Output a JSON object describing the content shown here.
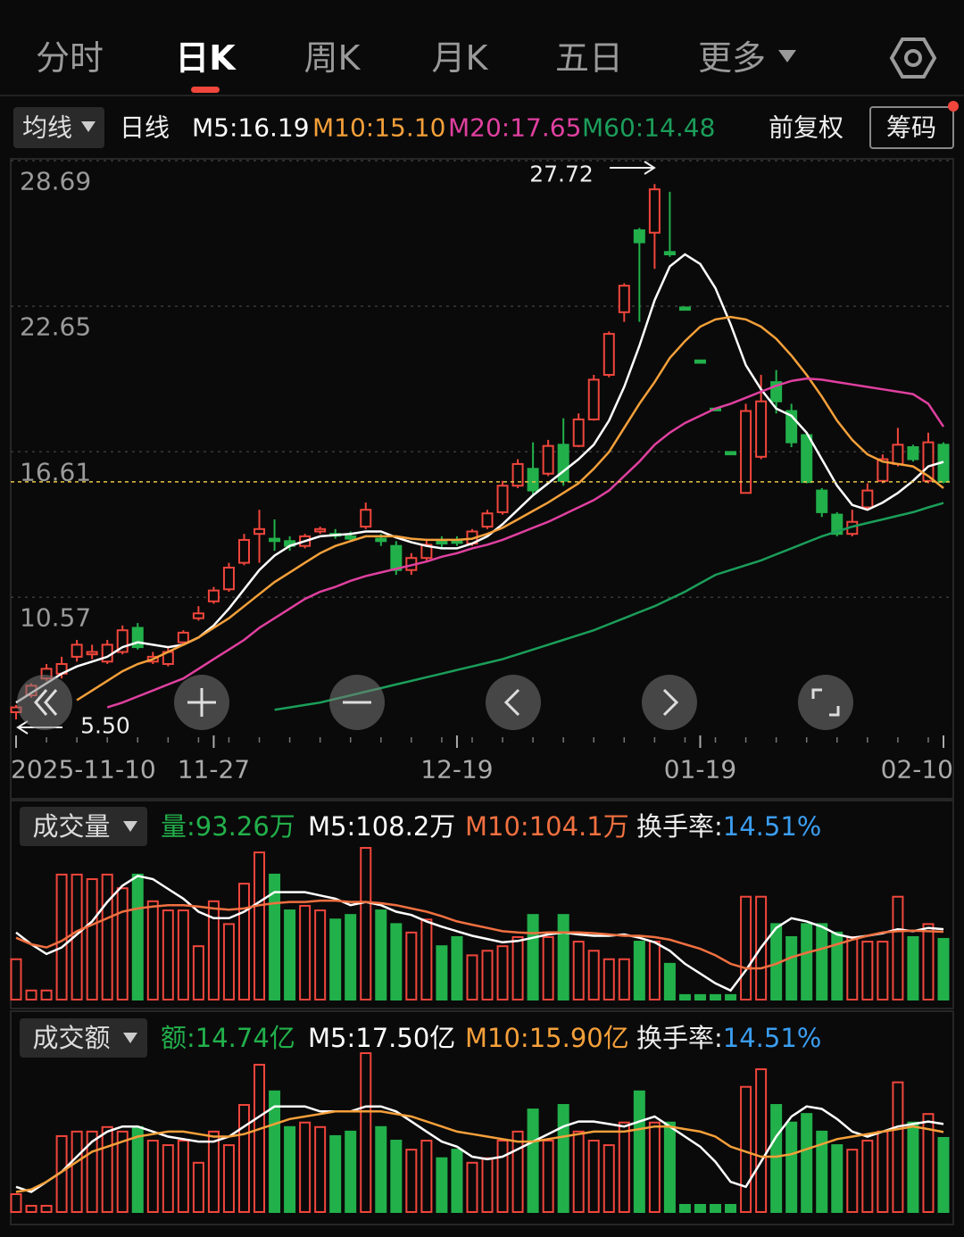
{
  "tabs": [
    {
      "label": "分时"
    },
    {
      "label": "日K",
      "active": true
    },
    {
      "label": "周K"
    },
    {
      "label": "月K"
    },
    {
      "label": "五日"
    },
    {
      "label": "更多"
    }
  ],
  "toolbar": {
    "ma_menu": "均线",
    "period": "日线",
    "adjust": "前复权",
    "chips": "筹码"
  },
  "chart_data": [
    {
      "type": "candlestick",
      "categories": [
        "2025-11-10",
        null,
        null,
        null,
        null,
        null,
        null,
        null,
        null,
        null,
        null,
        null,
        null,
        "11-27",
        null,
        null,
        null,
        null,
        null,
        null,
        null,
        null,
        null,
        null,
        null,
        null,
        null,
        null,
        null,
        "12-19",
        null,
        null,
        null,
        null,
        null,
        null,
        null,
        null,
        null,
        null,
        null,
        null,
        null,
        null,
        null,
        "01-19",
        null,
        null,
        null,
        null,
        null,
        null,
        null,
        null,
        null,
        null,
        null,
        null,
        null,
        null,
        null,
        "02-10"
      ],
      "open": [
        5.8,
        6.5,
        7.2,
        7.4,
        8.1,
        8.2,
        7.9,
        8.3,
        9.3,
        7.9,
        7.8,
        8.7,
        9.7,
        10.4,
        10.9,
        12.0,
        13.2,
        13.0,
        12.9,
        12.7,
        13.3,
        13.2,
        13.1,
        13.5,
        13.0,
        12.7,
        11.7,
        12.2,
        12.95,
        12.9,
        12.8,
        13.5,
        14.1,
        15.2,
        15.9,
        15.7,
        16.9,
        16.85,
        17.95,
        19.8,
        22.4,
        25.8,
        25.7,
        24.9,
        22.6,
        20.4,
        18.4,
        16.6,
        14.9,
        16.4,
        19.5,
        18.3,
        17.3,
        15.0,
        14.0,
        13.2,
        14.3,
        15.4,
        16.1,
        16.8,
        15.4,
        16.9
      ],
      "high": [
        6.1,
        7.0,
        7.8,
        8.1,
        8.8,
        8.6,
        8.8,
        9.4,
        9.5,
        8.3,
        8.5,
        9.2,
        10.2,
        11.0,
        12.0,
        13.2,
        14.2,
        13.8,
        13.1,
        13.2,
        13.5,
        13.4,
        13.3,
        14.5,
        13.2,
        12.9,
        12.4,
        13.0,
        13.1,
        13.1,
        13.4,
        14.2,
        15.4,
        16.3,
        17.0,
        17.1,
        18.0,
        18.2,
        19.8,
        21.6,
        23.6,
        25.9,
        27.72,
        27.4,
        22.6,
        20.4,
        18.4,
        16.6,
        18.6,
        19.8,
        20.0,
        18.6,
        17.4,
        15.1,
        14.1,
        14.2,
        15.3,
        16.5,
        17.6,
        16.9,
        17.4,
        17.0
      ],
      "low": [
        5.5,
        6.4,
        7.1,
        7.2,
        7.9,
        8.0,
        7.8,
        8.2,
        8.4,
        7.8,
        7.7,
        8.6,
        9.6,
        10.3,
        10.8,
        11.9,
        12.0,
        12.5,
        12.5,
        12.6,
        13.2,
        13.0,
        12.9,
        13.4,
        12.7,
        11.5,
        11.5,
        12.1,
        12.6,
        12.7,
        12.7,
        13.4,
        14.0,
        15.1,
        14.8,
        15.6,
        15.2,
        16.8,
        17.9,
        19.7,
        22.0,
        22.0,
        24.2,
        24.7,
        22.5,
        20.3,
        18.3,
        16.5,
        14.9,
        16.3,
        18.2,
        16.8,
        15.3,
        13.9,
        13.1,
        13.1,
        14.2,
        15.3,
        16.0,
        16.2,
        15.3,
        15.3
      ],
      "close": [
        6.0,
        6.9,
        7.6,
        7.8,
        8.6,
        8.3,
        8.6,
        9.2,
        8.5,
        8.1,
        8.3,
        9.1,
        9.9,
        10.85,
        11.8,
        12.95,
        13.4,
        12.9,
        12.7,
        13.1,
        13.4,
        13.15,
        13.0,
        14.2,
        12.9,
        11.7,
        12.2,
        12.75,
        12.8,
        12.85,
        13.3,
        14.05,
        15.2,
        16.1,
        15.0,
        16.85,
        15.4,
        17.95,
        19.6,
        21.5,
        23.5,
        25.3,
        27.5,
        24.8,
        22.5,
        20.3,
        18.35,
        16.5,
        18.3,
        18.7,
        18.7,
        17.0,
        15.35,
        14.1,
        13.2,
        13.7,
        15.0,
        16.3,
        16.9,
        16.3,
        17.0,
        15.36
      ],
      "up_color": "#f0463c",
      "down_color": "#22b04b",
      "last_price_color": "#e8c547",
      "ylim": [
        4.91,
        28.69
      ],
      "yticks": [
        28.69,
        22.65,
        16.61,
        10.57
      ],
      "grid": true,
      "series": [
        {
          "name": "M5:16.19",
          "color": "#ffffff",
          "values": [
            6.2,
            6.6,
            7.0,
            7.4,
            7.7,
            7.9,
            8.1,
            8.5,
            8.7,
            8.6,
            8.5,
            8.6,
            8.9,
            9.4,
            10.1,
            10.9,
            11.7,
            12.3,
            12.7,
            12.9,
            13.1,
            13.15,
            13.2,
            13.3,
            13.3,
            13.05,
            12.85,
            12.7,
            12.6,
            12.6,
            12.8,
            13.1,
            13.6,
            14.2,
            14.8,
            15.3,
            15.8,
            16.3,
            16.9,
            17.9,
            19.3,
            21.0,
            22.9,
            24.3,
            24.8,
            24.4,
            23.4,
            21.9,
            20.2,
            19.2,
            18.4,
            18.1,
            17.4,
            16.3,
            15.2,
            14.4,
            14.2,
            14.5,
            14.9,
            15.4,
            16.0,
            16.19
          ]
        },
        {
          "name": "M10:15.10",
          "color": "#f5a03a",
          "values": [
            null,
            null,
            null,
            null,
            6.3,
            6.7,
            7.1,
            7.5,
            7.8,
            8.0,
            8.3,
            8.6,
            8.9,
            9.3,
            9.7,
            10.2,
            10.7,
            11.2,
            11.6,
            12.0,
            12.4,
            12.7,
            12.9,
            13.1,
            13.1,
            13.1,
            13.0,
            12.95,
            12.95,
            12.95,
            13.0,
            13.2,
            13.45,
            13.8,
            14.15,
            14.5,
            14.9,
            15.3,
            15.9,
            16.6,
            17.6,
            18.6,
            19.5,
            20.5,
            21.2,
            21.8,
            22.1,
            22.2,
            22.1,
            21.8,
            21.3,
            20.6,
            19.8,
            18.9,
            17.9,
            17.1,
            16.5,
            16.2,
            16.1,
            16.0,
            15.6,
            15.1
          ]
        },
        {
          "name": "M20:17.65",
          "color": "#e040a0",
          "values": [
            null,
            null,
            null,
            null,
            null,
            null,
            6.0,
            6.2,
            6.45,
            6.7,
            6.95,
            7.2,
            7.6,
            8.0,
            8.4,
            8.8,
            9.3,
            9.7,
            10.1,
            10.5,
            10.8,
            11.0,
            11.25,
            11.45,
            11.6,
            11.75,
            11.9,
            12.05,
            12.25,
            12.4,
            12.6,
            12.75,
            12.95,
            13.2,
            13.45,
            13.7,
            14.0,
            14.3,
            14.6,
            15.0,
            15.6,
            16.2,
            16.9,
            17.4,
            17.8,
            18.1,
            18.4,
            18.6,
            18.85,
            19.1,
            19.35,
            19.55,
            19.65,
            19.6,
            19.5,
            19.4,
            19.3,
            19.2,
            19.1,
            19.0,
            18.6,
            17.65
          ]
        },
        {
          "name": "M60:14.48",
          "color": "#1b9e5a",
          "values": [
            null,
            null,
            null,
            null,
            null,
            null,
            null,
            null,
            null,
            null,
            null,
            null,
            null,
            null,
            null,
            null,
            null,
            5.9,
            6.0,
            6.1,
            6.2,
            6.35,
            6.5,
            6.65,
            6.8,
            6.95,
            7.1,
            7.25,
            7.4,
            7.55,
            7.7,
            7.85,
            8.0,
            8.2,
            8.4,
            8.6,
            8.8,
            9.0,
            9.2,
            9.45,
            9.7,
            9.95,
            10.2,
            10.5,
            10.8,
            11.15,
            11.5,
            11.7,
            11.9,
            12.1,
            12.35,
            12.6,
            12.85,
            13.1,
            13.3,
            13.5,
            13.65,
            13.8,
            13.95,
            14.1,
            14.3,
            14.48
          ]
        }
      ],
      "annotations": [
        {
          "text": "27.72"
        },
        {
          "text": "5.50"
        }
      ]
    },
    {
      "type": "bar",
      "title": "成交量",
      "current": "量:93.26万",
      "current_color": "#22b04b",
      "values": [
        62,
        14,
        14,
        192,
        192,
        185,
        192,
        171,
        192,
        151,
        137,
        137,
        82,
        151,
        116,
        178,
        226,
        192,
        137,
        144,
        137,
        123,
        130,
        233,
        137,
        116,
        103,
        123,
        82,
        96,
        68,
        75,
        82,
        96,
        130,
        96,
        130,
        89,
        75,
        62,
        62,
        89,
        89,
        55,
        7,
        7,
        7,
        7,
        158,
        158,
        116,
        96,
        116,
        116,
        103,
        96,
        89,
        89,
        158,
        96,
        116,
        93.26
      ],
      "series": [
        {
          "name": "M5:108.2万",
          "color": "#ffffff",
          "values": [
            103,
            85,
            70,
            80,
            100,
            120,
            150,
            175,
            190,
            185,
            170,
            155,
            135,
            125,
            125,
            135,
            150,
            165,
            165,
            165,
            160,
            155,
            145,
            150,
            145,
            135,
            130,
            120,
            112,
            105,
            98,
            93,
            88,
            90,
            95,
            100,
            103,
            100,
            98,
            98,
            100,
            95,
            88,
            75,
            55,
            40,
            25,
            14,
            45,
            80,
            110,
            125,
            120,
            112,
            100,
            95,
            98,
            102,
            108,
            105,
            110,
            108.2
          ]
        },
        {
          "name": "M10:104.1万",
          "color": "#f07040",
          "values": [
            95,
            85,
            80,
            90,
            105,
            115,
            125,
            135,
            140,
            143,
            145,
            145,
            143,
            140,
            138,
            140,
            145,
            148,
            150,
            150,
            152,
            152,
            150,
            150,
            148,
            145,
            140,
            135,
            128,
            120,
            115,
            110,
            105,
            103,
            102,
            103,
            103,
            103,
            102,
            100,
            98,
            98,
            96,
            92,
            85,
            78,
            68,
            55,
            48,
            48,
            55,
            65,
            72,
            78,
            85,
            92,
            98,
            103,
            105,
            106,
            105,
            104.1
          ]
        }
      ],
      "turnover_label": "换手率:",
      "turnover": "14.51%",
      "turnover_color": "#3b9df0"
    },
    {
      "type": "bar",
      "title": "成交额",
      "current": "额:14.74亿",
      "current_color": "#22b04b",
      "values": [
        3.55,
        1.24,
        1.24,
        15.1,
        16.0,
        16.0,
        16.9,
        16.0,
        16.9,
        14.2,
        13.3,
        14.2,
        9.8,
        16.0,
        13.3,
        21.3,
        29.3,
        24.0,
        16.9,
        17.8,
        16.9,
        15.1,
        16.0,
        31.6,
        16.9,
        14.2,
        12.4,
        14.2,
        10.7,
        12.4,
        9.8,
        10.7,
        14.2,
        16.0,
        20.4,
        14.2,
        21.3,
        16.0,
        14.2,
        13.3,
        17.8,
        24.0,
        17.8,
        17.8,
        1.42,
        1.42,
        1.42,
        1.42,
        24.9,
        28.4,
        21.3,
        17.8,
        19.5,
        16.0,
        13.3,
        12.4,
        14.2,
        16.0,
        25.8,
        17.8,
        19.5,
        14.74
      ],
      "series": [
        {
          "name": "M5:17.50亿",
          "color": "#ffffff",
          "values": [
            5,
            4,
            6,
            8,
            11,
            14,
            16,
            17,
            17,
            16,
            15,
            14.5,
            14,
            14,
            15,
            17,
            19,
            21,
            21,
            21,
            20,
            20,
            20,
            21,
            21,
            20,
            18,
            16,
            14,
            13,
            11,
            10.5,
            11,
            12.5,
            14,
            15.5,
            17,
            18,
            18,
            17.5,
            17,
            18,
            19,
            17,
            15,
            13,
            10,
            6,
            5,
            10,
            15,
            19,
            21,
            20.5,
            18.5,
            16,
            15,
            16,
            17,
            17.5,
            18,
            17.5
          ]
        },
        {
          "name": "M10:15.90亿",
          "color": "#f5a03a",
          "values": [
            4,
            4.5,
            6,
            8,
            10,
            12,
            13,
            14,
            15,
            15.5,
            16,
            16,
            15.5,
            15,
            15,
            15.5,
            16.5,
            17.5,
            18.5,
            19,
            19.5,
            20,
            20,
            20,
            20,
            19.5,
            19,
            18,
            17,
            16,
            15.5,
            15,
            14.5,
            14,
            14,
            14.5,
            15,
            15.5,
            16,
            16,
            16,
            16.5,
            17,
            17,
            16.5,
            16,
            15,
            13,
            12,
            11,
            11,
            11.5,
            12.5,
            13.5,
            14.5,
            15,
            15.5,
            16,
            16.5,
            17,
            16.5,
            15.9
          ]
        }
      ],
      "turnover_label": "换手率:",
      "turnover": "14.51%",
      "turnover_color": "#3b9df0"
    }
  ]
}
